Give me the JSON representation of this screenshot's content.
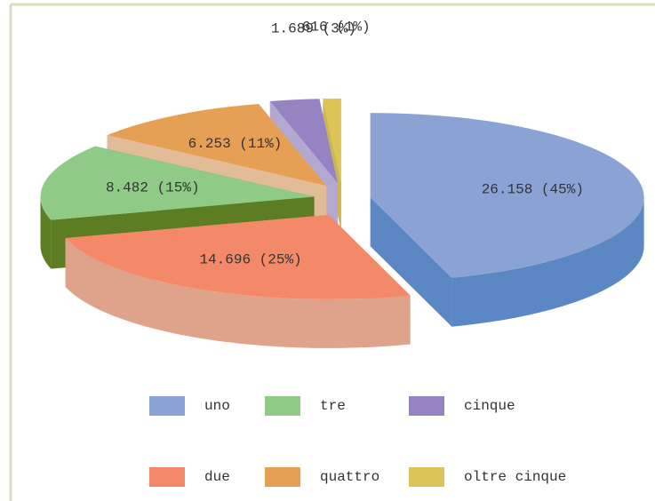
{
  "chart_data": {
    "type": "pie3d",
    "categories": [
      "uno",
      "due",
      "tre",
      "quattro",
      "cinque",
      "oltre cinque"
    ],
    "values": [
      26158,
      14696,
      8482,
      6253,
      1689,
      616
    ],
    "value_labels": [
      "26.158 (45%)",
      "14.696 (25%)",
      "8.482 (15%)",
      "6.253 (11%)",
      "1.689 (3%)",
      "616 (1%)"
    ],
    "colors": [
      "#8aa3d4",
      "#f4896a",
      "#8fcb86",
      "#e6a056",
      "#9484c1",
      "#dcc556"
    ],
    "side_colors": [
      "#5b87c5",
      "#dfa38b",
      "#5d7d22",
      "#e2bc96",
      "#b2a8d2",
      "#cdb651"
    ],
    "legend": "bottom"
  }
}
